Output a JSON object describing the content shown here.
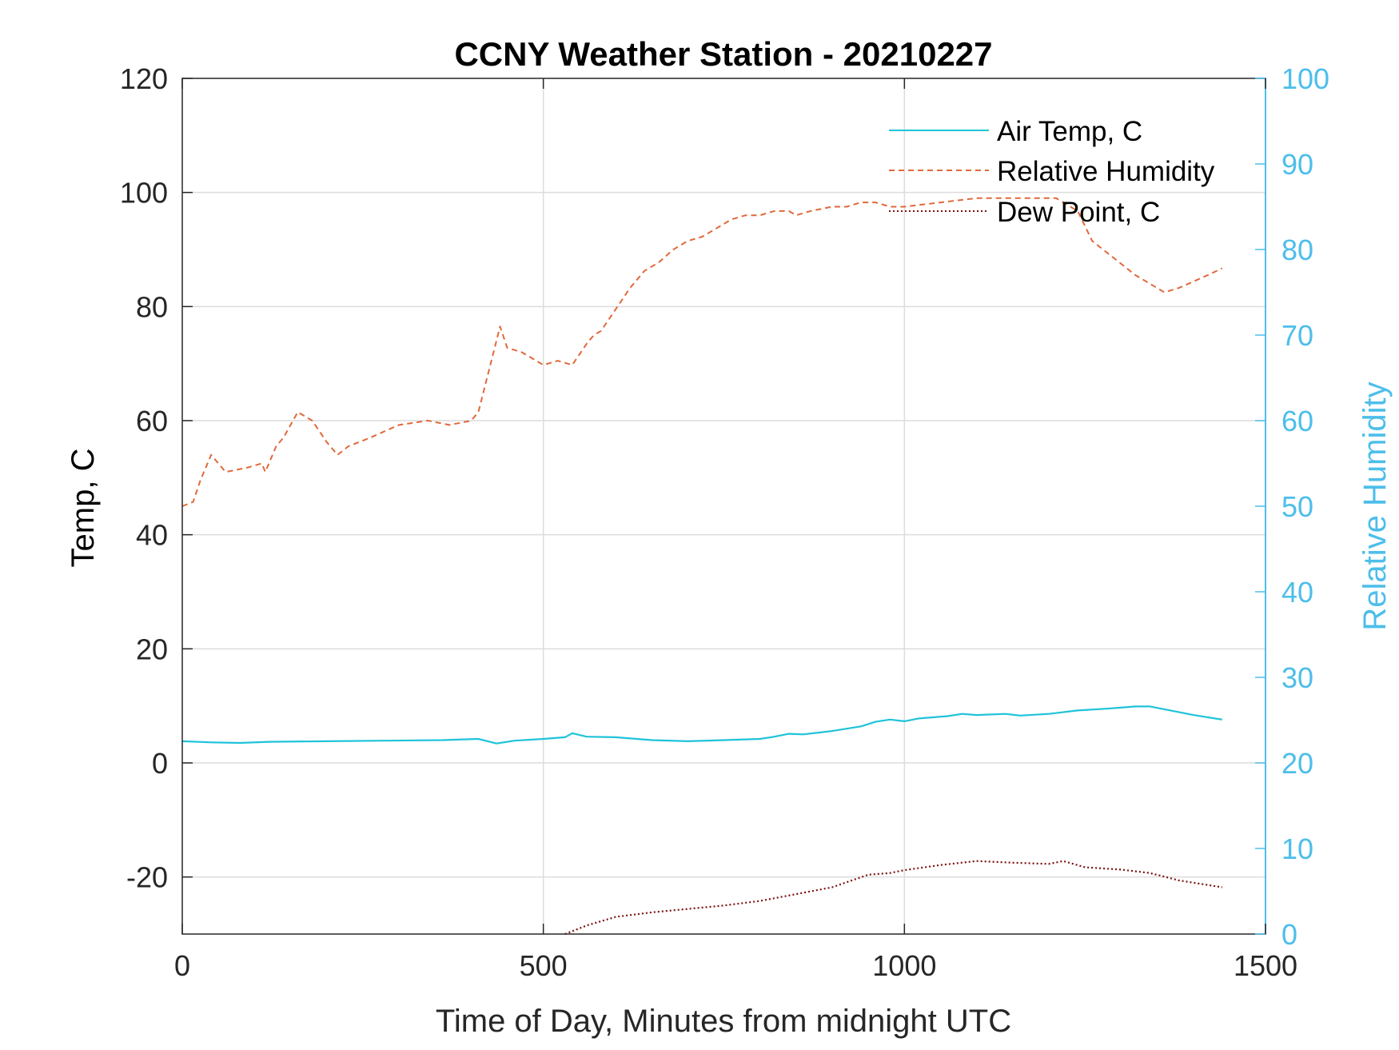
{
  "chart_data": {
    "type": "line",
    "title": "CCNY Weather Station - 20210227",
    "xlabel": "Time of Day, Minutes from midnight UTC",
    "ylabel_left": "Temp, C",
    "ylabel_right": "Relative Humidity",
    "xlim": [
      0,
      1500
    ],
    "ylim_left": [
      -30,
      120
    ],
    "ylim_right": [
      0,
      100
    ],
    "xticks": [
      0,
      500,
      1000,
      1500
    ],
    "yticks_left": [
      -20,
      0,
      20,
      40,
      60,
      80,
      100,
      120
    ],
    "yticks_right": [
      0,
      10,
      20,
      30,
      40,
      50,
      60,
      70,
      80,
      90,
      100
    ],
    "grid": true,
    "legend_position": "top-right",
    "colors": {
      "air_temp": "#1fc3d9",
      "relative_humidity": "#e0693a",
      "dew_point": "#7a1010",
      "right_axis": "#4dbeea",
      "axis": "#000000",
      "grid": "#dcdcdc"
    },
    "series": [
      {
        "name": "Air Temp, C",
        "axis": "left",
        "style": "solid",
        "x": [
          0,
          40,
          80,
          120,
          200,
          280,
          360,
          410,
          435,
          460,
          500,
          530,
          540,
          560,
          600,
          650,
          700,
          750,
          800,
          820,
          840,
          860,
          900,
          940,
          960,
          980,
          1000,
          1020,
          1060,
          1080,
          1100,
          1140,
          1160,
          1200,
          1240,
          1280,
          1320,
          1340,
          1360,
          1400,
          1440
        ],
        "y": [
          3.8,
          3.6,
          3.5,
          3.7,
          3.8,
          3.9,
          4.0,
          4.2,
          3.4,
          3.9,
          4.2,
          4.5,
          5.2,
          4.6,
          4.5,
          4.0,
          3.8,
          4.0,
          4.2,
          4.6,
          5.1,
          5.0,
          5.6,
          6.4,
          7.2,
          7.6,
          7.3,
          7.8,
          8.2,
          8.6,
          8.4,
          8.6,
          8.3,
          8.6,
          9.2,
          9.5,
          9.9,
          9.9,
          9.4,
          8.4,
          7.6
        ]
      },
      {
        "name": "Relative Humidity",
        "axis": "right",
        "style": "dashed",
        "x": [
          0,
          15,
          25,
          40,
          60,
          90,
          110,
          115,
          130,
          140,
          160,
          180,
          200,
          215,
          230,
          260,
          300,
          340,
          370,
          400,
          410,
          440,
          450,
          470,
          500,
          520,
          540,
          560,
          570,
          580,
          600,
          620,
          640,
          660,
          680,
          700,
          720,
          740,
          760,
          780,
          800,
          820,
          840,
          850,
          870,
          900,
          920,
          940,
          960,
          980,
          1000,
          1050,
          1100,
          1150,
          1210,
          1220,
          1240,
          1260,
          1290,
          1320,
          1360,
          1380,
          1420,
          1440
        ],
        "y": [
          50,
          50.5,
          53,
          56,
          54,
          54.5,
          55,
          54,
          57,
          58,
          61,
          60,
          57.5,
          56,
          57,
          58,
          59.5,
          60,
          59.5,
          60,
          61,
          71,
          68.5,
          68,
          66.5,
          67,
          66.5,
          69,
          70,
          70.5,
          73,
          75.5,
          77.5,
          78.5,
          80,
          81,
          81.5,
          82.5,
          83.5,
          84,
          84,
          84.5,
          84.5,
          84,
          84.5,
          85,
          85,
          85.5,
          85.5,
          85,
          85,
          85.5,
          86,
          86,
          86,
          85.5,
          84.5,
          81,
          79,
          77,
          75,
          75.5,
          77,
          77.8
        ]
      },
      {
        "name": "Dew Point, C",
        "axis": "left",
        "style": "dotted",
        "x": [
          530,
          560,
          600,
          650,
          700,
          750,
          800,
          850,
          900,
          950,
          980,
          1000,
          1050,
          1100,
          1150,
          1200,
          1220,
          1250,
          1300,
          1340,
          1380,
          1440
        ],
        "y": [
          -30,
          -28.5,
          -27,
          -26.2,
          -25.6,
          -25,
          -24.2,
          -23,
          -21.8,
          -19.6,
          -19.3,
          -18.8,
          -17.9,
          -17.2,
          -17.5,
          -17.7,
          -17.2,
          -18.3,
          -18.7,
          -19.3,
          -20.6,
          -21.8
        ]
      }
    ]
  }
}
